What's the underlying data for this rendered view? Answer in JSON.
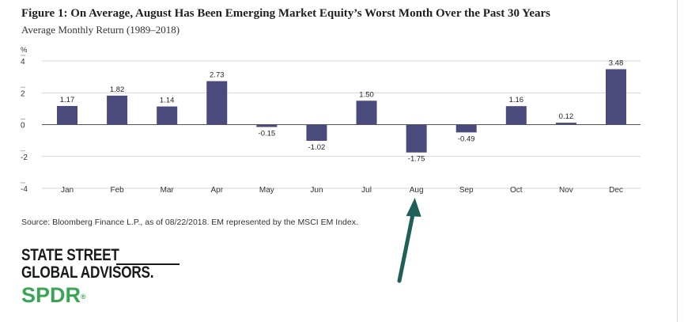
{
  "title": "Figure 1: On Average, August Has Been Emerging Market Equity’s Worst Month Over the Past 30 Years",
  "subtitle": "Average Monthly Return (1989–2018)",
  "source": "Source: Bloomberg Finance L.P., as of 08/22/2018. EM represented by the MSCI EM Index.",
  "logo": {
    "line1": "STATE STREET",
    "line2": "GLOBAL ADVISORS.",
    "brand": "SPDR",
    "mark": "®"
  },
  "colors": {
    "bar": "#4a4a7c",
    "arrow": "#1e5f5a",
    "brand_green": "#3aa655"
  },
  "chart_data": {
    "type": "bar",
    "title": "Figure 1: On Average, August Has Been Emerging Market Equity’s Worst Month Over the Past 30 Years",
    "subtitle": "Average Monthly Return (1989–2018)",
    "ylabel": "%",
    "ylim": [
      -4,
      4
    ],
    "yticks": [
      4,
      2,
      0,
      -2,
      -4
    ],
    "categories": [
      "Jan",
      "Feb",
      "Mar",
      "Apr",
      "May",
      "Jun",
      "Jul",
      "Aug",
      "Sep",
      "Oct",
      "Nov",
      "Dec"
    ],
    "values": [
      1.17,
      1.82,
      1.14,
      2.73,
      -0.15,
      -1.02,
      1.5,
      -1.75,
      -0.49,
      1.16,
      0.12,
      3.48
    ],
    "data_labels": [
      "1.17",
      "1.82",
      "1.14",
      "2.73",
      "-0.15",
      "-1.02",
      "1.50",
      "-1.75",
      "-0.49",
      "1.16",
      "0.12",
      "3.48"
    ],
    "grid": "horizontal",
    "annotation": {
      "type": "arrow",
      "target": "Aug"
    }
  }
}
